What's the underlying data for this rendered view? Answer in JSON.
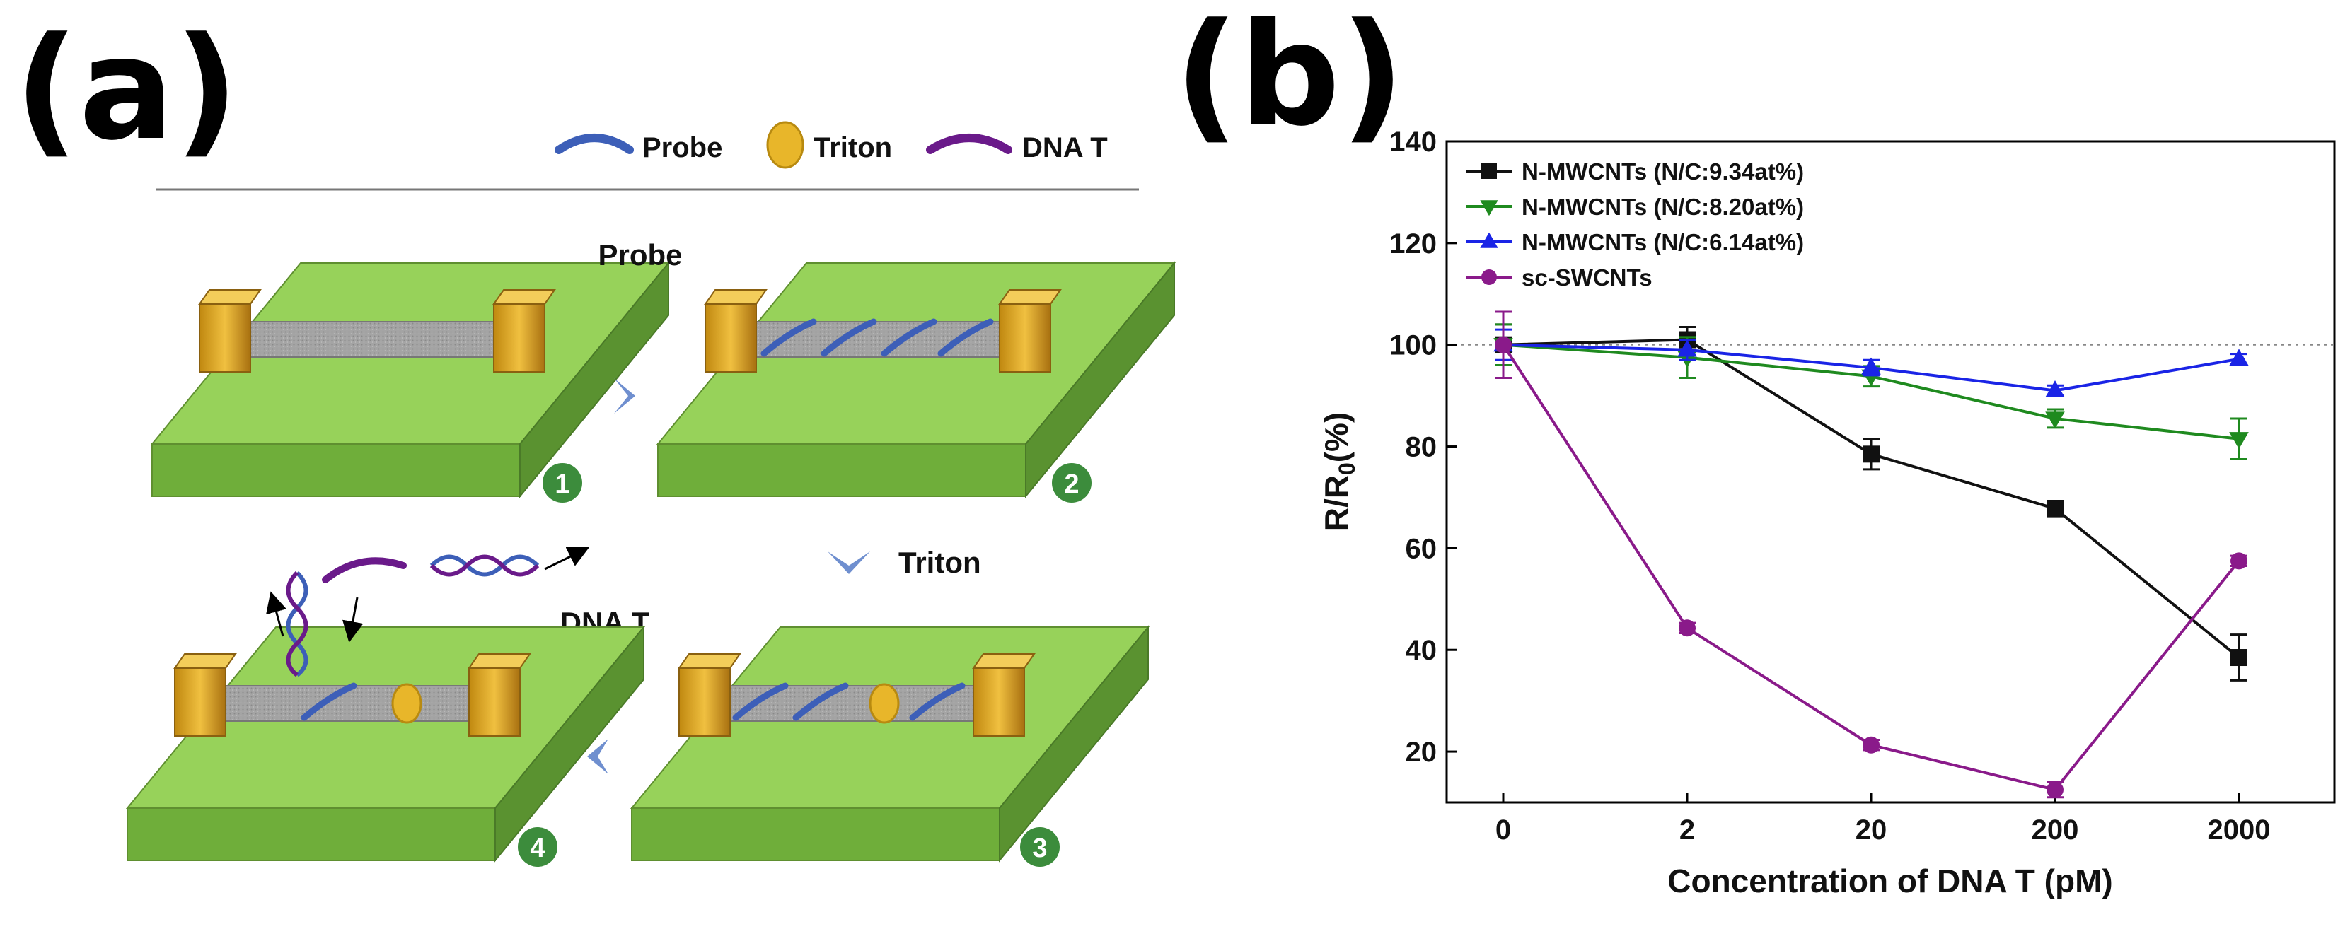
{
  "panel_a": {
    "label": "(a)",
    "legend": [
      {
        "name": "Probe",
        "icon": "probe-strand-icon",
        "color": "#3d5fb8"
      },
      {
        "name": "Triton",
        "icon": "triton-bead-icon",
        "color": "#e8b62a"
      },
      {
        "name": "DNA T",
        "icon": "dna-target-icon",
        "color": "#6a1a8a"
      }
    ],
    "step_labels": {
      "probe": "Probe",
      "triton": "Triton",
      "dna_t": "DNA T"
    },
    "steps": [
      "1",
      "2",
      "3",
      "4"
    ],
    "colors": {
      "substrate": "#8fcf4e",
      "electrode": "#d9a21c",
      "channel": "#a7a7a7",
      "badge": "#3c8c3c",
      "arrow": "#6f8fcf"
    }
  },
  "panel_b": {
    "label": "(b)"
  },
  "chart_data": {
    "type": "line",
    "xlabel": "Concentration of DNA T (pM)",
    "ylabel_main": "R/R",
    "ylabel_sub": "0",
    "ylabel_suffix": "(%)",
    "categories": [
      "0",
      "2",
      "20",
      "200",
      "2000"
    ],
    "ylim": [
      10,
      140
    ],
    "yticks": [
      20,
      40,
      60,
      80,
      100,
      120,
      140
    ],
    "reference_line": 100,
    "legend_position": "top-left",
    "series": [
      {
        "name": "N-MWCNTs (N/C:9.34at%)",
        "marker": "square",
        "color": "#111111",
        "values": [
          100,
          101,
          78.5,
          67.8,
          38.5
        ],
        "errors": [
          4,
          2.5,
          3,
          1.5,
          4.5
        ]
      },
      {
        "name": "N-MWCNTs (N/C:8.20at%)",
        "marker": "triangle-down",
        "color": "#1f8a1f",
        "values": [
          100,
          97.5,
          93.8,
          85.5,
          81.5
        ],
        "errors": [
          4,
          4,
          2,
          1.8,
          4
        ]
      },
      {
        "name": "N-MWCNTs (N/C:6.14at%)",
        "marker": "triangle-up",
        "color": "#1a24e6",
        "values": [
          100,
          99,
          95.5,
          91,
          97.2
        ],
        "errors": [
          3,
          2,
          1.5,
          1,
          1
        ]
      },
      {
        "name": "sc-SWCNTs",
        "marker": "circle",
        "color": "#8a1a8a",
        "values": [
          100,
          44.3,
          21.3,
          12.5,
          57.5
        ],
        "errors": [
          6.5,
          1,
          1,
          1.5,
          1
        ]
      }
    ]
  }
}
